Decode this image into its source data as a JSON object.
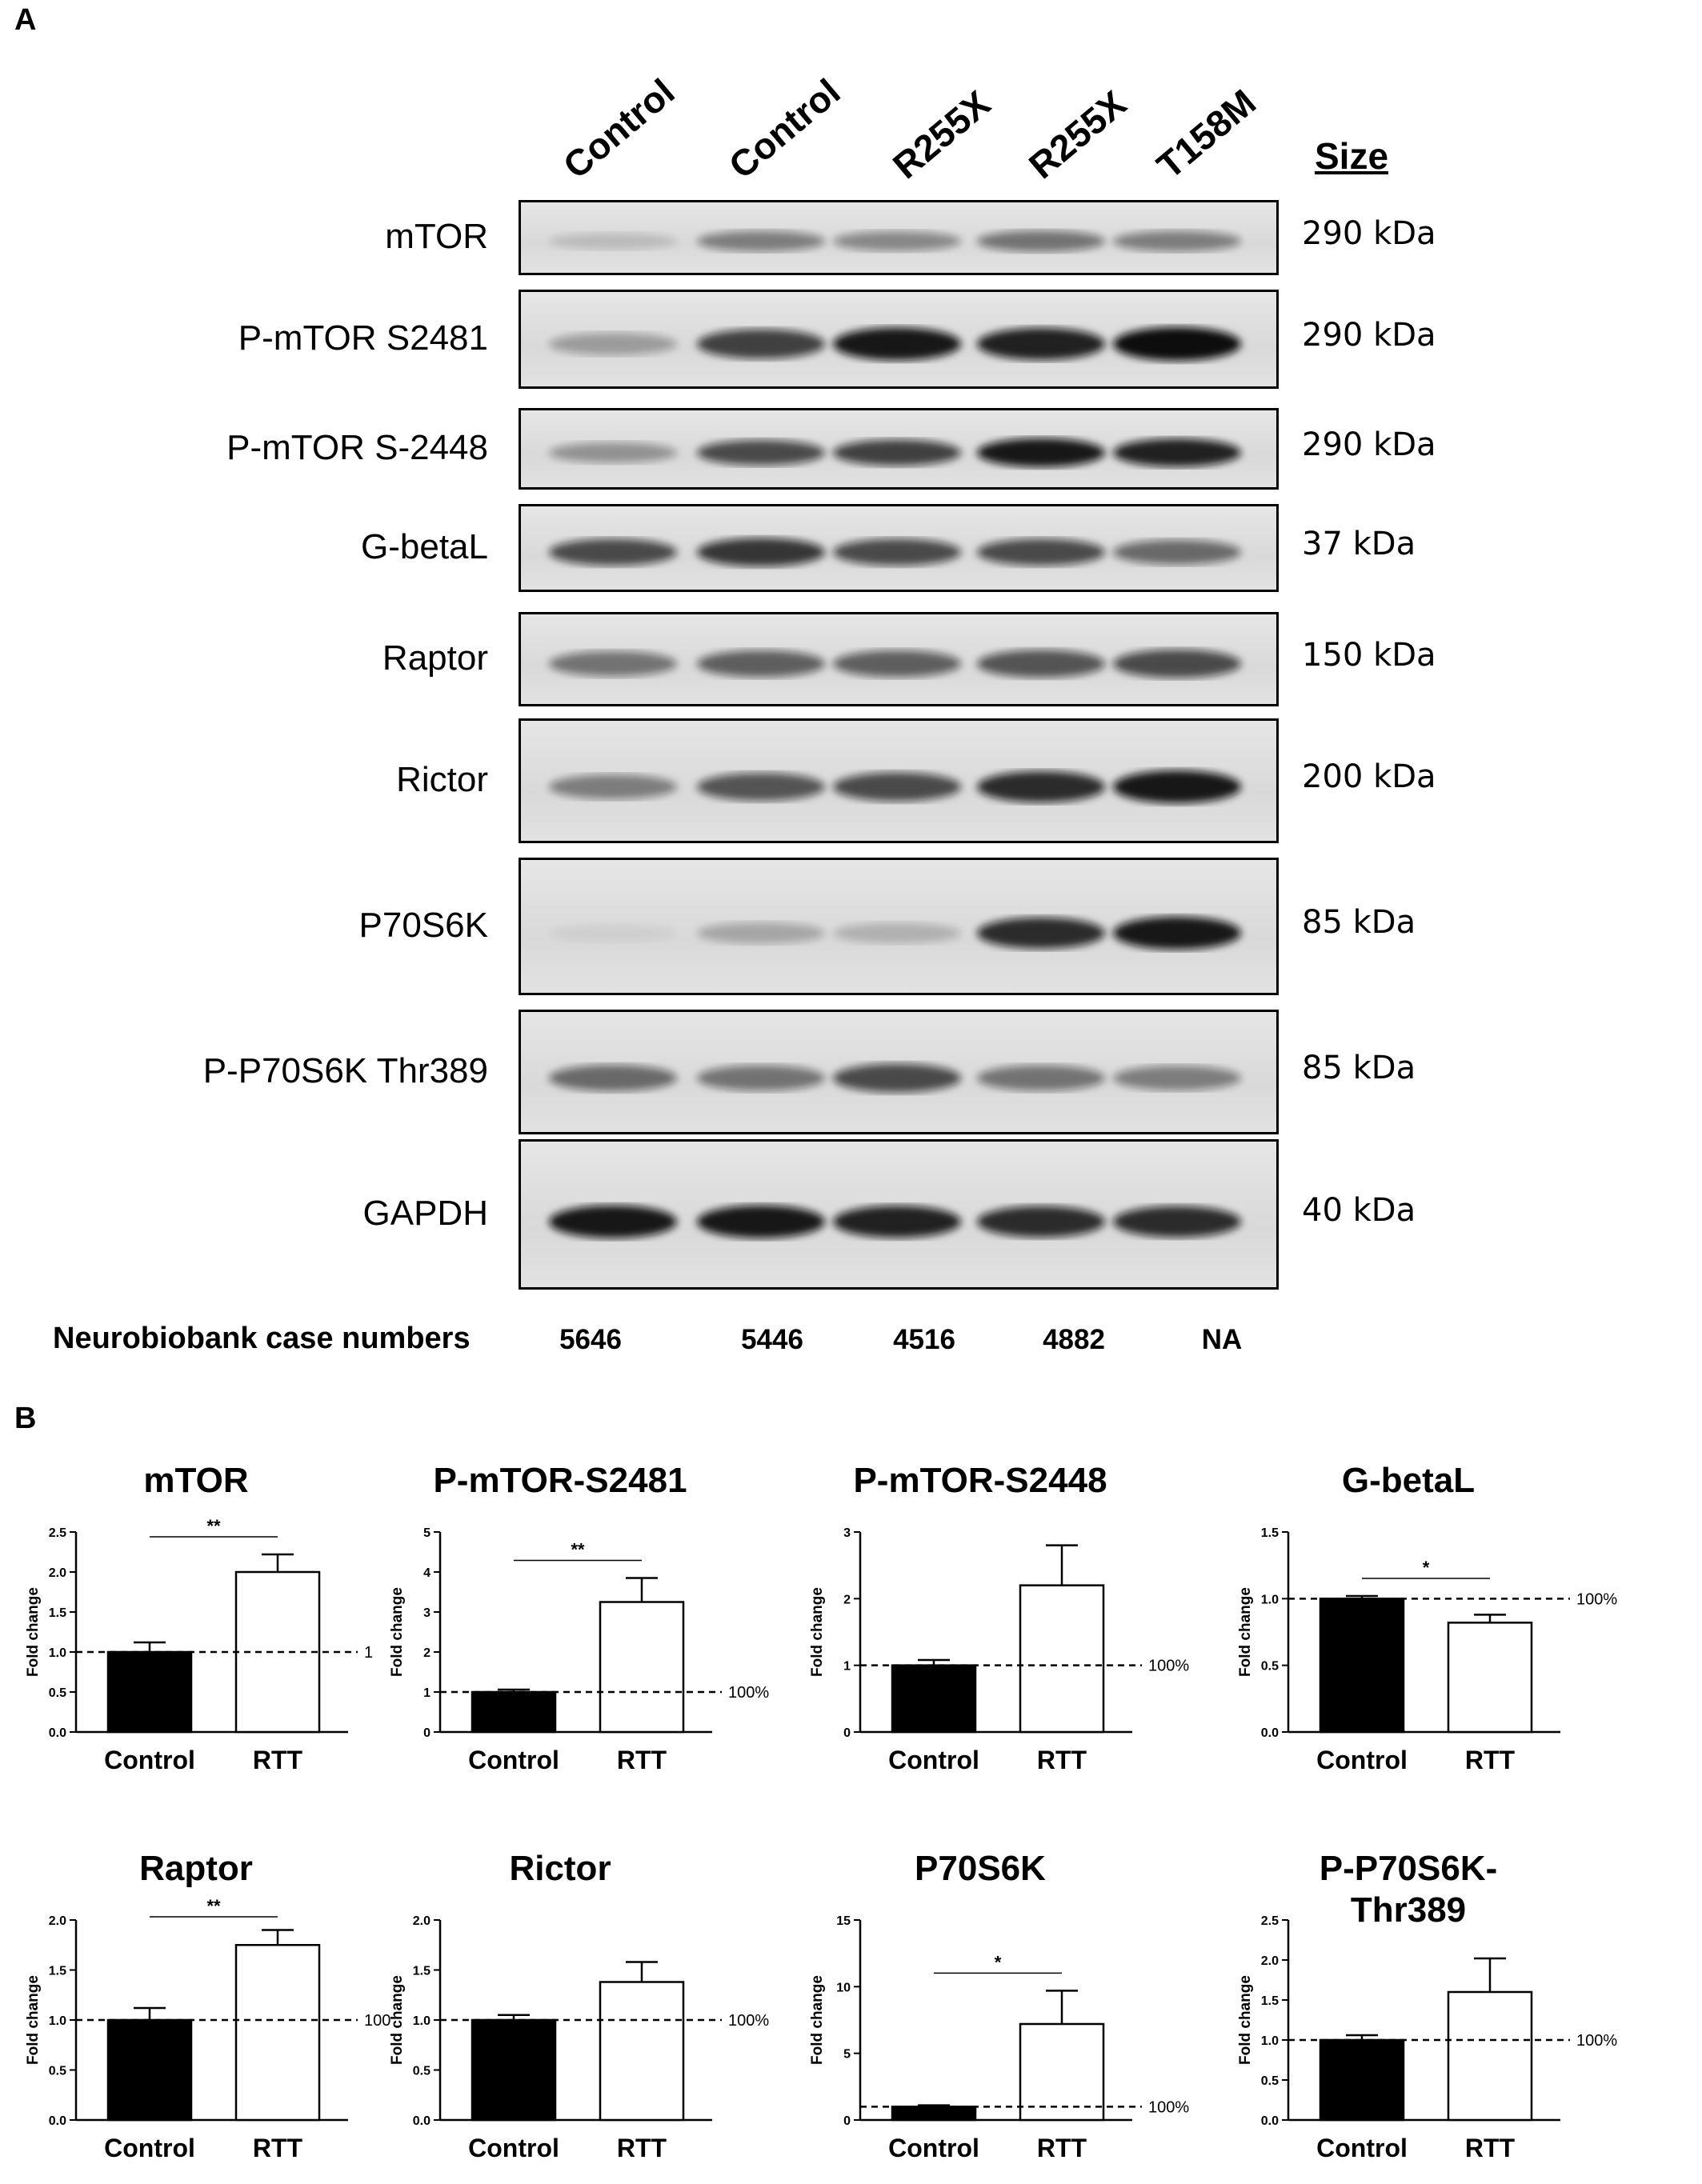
{
  "panel_a": {
    "letter": "A",
    "lanes": [
      "Control",
      "Control",
      "R255X",
      "R255X",
      "T158M"
    ],
    "size_header": "Size",
    "blots": [
      {
        "label": "mTOR",
        "size": "290 kDa",
        "intensity": [
          0.15,
          0.45,
          0.4,
          0.5,
          0.45
        ]
      },
      {
        "label": "P-mTOR S2481",
        "size": "290 kDa",
        "intensity": [
          0.3,
          0.75,
          0.95,
          0.9,
          1.0
        ]
      },
      {
        "label": "P-mTOR S-2448",
        "size": "290 kDa",
        "intensity": [
          0.35,
          0.7,
          0.75,
          0.95,
          0.9
        ]
      },
      {
        "label": "G-betaL",
        "size": "37 kDa",
        "intensity": [
          0.7,
          0.8,
          0.7,
          0.7,
          0.55
        ]
      },
      {
        "label": "Raptor",
        "size": "150 kDa",
        "intensity": [
          0.5,
          0.6,
          0.6,
          0.65,
          0.7
        ]
      },
      {
        "label": "Rictor",
        "size": "200 kDa",
        "intensity": [
          0.45,
          0.65,
          0.7,
          0.85,
          0.95
        ]
      },
      {
        "label": "P70S6K",
        "size": "85 kDa",
        "intensity": [
          0.05,
          0.25,
          0.2,
          0.85,
          0.95
        ]
      },
      {
        "label": "P-P70S6K Thr389",
        "size": "85 kDa",
        "intensity": [
          0.55,
          0.5,
          0.7,
          0.5,
          0.45
        ]
      },
      {
        "label": "GAPDH",
        "size": "40 kDa",
        "intensity": [
          0.95,
          0.95,
          0.9,
          0.85,
          0.85
        ]
      }
    ],
    "case_header": "Neurobiobank case numbers",
    "case_numbers": [
      "5646",
      "5446",
      "4516",
      "4882",
      "NA"
    ]
  },
  "panel_b": {
    "letter": "B",
    "colors": {
      "control": "#000000",
      "rtt": "#ffffff"
    }
  },
  "chart_data": [
    {
      "type": "bar",
      "title": "mTOR",
      "ylabel": "Fold change",
      "categories": [
        "Control",
        "RTT"
      ],
      "values": [
        1.0,
        2.0
      ],
      "errors": [
        0.12,
        0.22
      ],
      "ylim": [
        0,
        2.5
      ],
      "yticks": [
        "0.0",
        "0.5",
        "1.0",
        "1.5",
        "2.0",
        "2.5"
      ],
      "ytick_values": [
        0,
        0.5,
        1.0,
        1.5,
        2.0,
        2.5
      ],
      "reference": 1.0,
      "reference_label": "1",
      "significance": "**"
    },
    {
      "type": "bar",
      "title": "P-mTOR-S2481",
      "ylabel": "Fold change",
      "categories": [
        "Control",
        "RTT"
      ],
      "values": [
        1.0,
        3.25
      ],
      "errors": [
        0.06,
        0.6
      ],
      "ylim": [
        0,
        5
      ],
      "yticks": [
        "0",
        "1",
        "2",
        "3",
        "4",
        "5"
      ],
      "ytick_values": [
        0,
        1,
        2,
        3,
        4,
        5
      ],
      "reference": 1.0,
      "reference_label": "100%",
      "significance": "**"
    },
    {
      "type": "bar",
      "title": "P-mTOR-S2448",
      "ylabel": "Fold change",
      "categories": [
        "Control",
        "RTT"
      ],
      "values": [
        1.0,
        2.2
      ],
      "errors": [
        0.08,
        0.6
      ],
      "ylim": [
        0,
        3
      ],
      "yticks": [
        "0",
        "1",
        "2",
        "3"
      ],
      "ytick_values": [
        0,
        1,
        2,
        3
      ],
      "reference": 1.0,
      "reference_label": "100%",
      "significance": ""
    },
    {
      "type": "bar",
      "title": "G-betaL",
      "ylabel": "Fold change",
      "categories": [
        "Control",
        "RTT"
      ],
      "values": [
        1.0,
        0.82
      ],
      "errors": [
        0.02,
        0.06
      ],
      "ylim": [
        0,
        1.5
      ],
      "yticks": [
        "0.0",
        "0.5",
        "1.0",
        "1.5"
      ],
      "ytick_values": [
        0,
        0.5,
        1.0,
        1.5
      ],
      "reference": 1.0,
      "reference_label": "100%",
      "significance": "*"
    },
    {
      "type": "bar",
      "title": "Raptor",
      "ylabel": "Fold change",
      "categories": [
        "Control",
        "RTT"
      ],
      "values": [
        1.0,
        1.75
      ],
      "errors": [
        0.12,
        0.15
      ],
      "ylim": [
        0,
        2.0
      ],
      "yticks": [
        "0.0",
        "0.5",
        "1.0",
        "1.5",
        "2.0"
      ],
      "ytick_values": [
        0,
        0.5,
        1.0,
        1.5,
        2.0
      ],
      "reference": 1.0,
      "reference_label": "100",
      "significance": "**"
    },
    {
      "type": "bar",
      "title": "Rictor",
      "ylabel": "Fold change",
      "categories": [
        "Control",
        "RTT"
      ],
      "values": [
        1.0,
        1.38
      ],
      "errors": [
        0.05,
        0.2
      ],
      "ylim": [
        0,
        2.0
      ],
      "yticks": [
        "0.0",
        "0.5",
        "1.0",
        "1.5",
        "2.0"
      ],
      "ytick_values": [
        0,
        0.5,
        1.0,
        1.5,
        2.0
      ],
      "reference": 1.0,
      "reference_label": "100%",
      "significance": ""
    },
    {
      "type": "bar",
      "title": "P70S6K",
      "ylabel": "Fold change",
      "categories": [
        "Control",
        "RTT"
      ],
      "values": [
        1.0,
        7.2
      ],
      "errors": [
        0.1,
        2.5
      ],
      "ylim": [
        0,
        15
      ],
      "yticks": [
        "0",
        "5",
        "10",
        "15"
      ],
      "ytick_values": [
        0,
        5,
        10,
        15
      ],
      "reference": 1.0,
      "reference_label": "100%",
      "significance": "*"
    },
    {
      "type": "bar",
      "title": "P-P70S6K-Thr389",
      "title_lines": [
        "P-P70S6K-",
        "Thr389"
      ],
      "ylabel": "Fold change",
      "categories": [
        "Control",
        "RTT"
      ],
      "values": [
        1.0,
        1.6
      ],
      "errors": [
        0.06,
        0.42
      ],
      "ylim": [
        0,
        2.5
      ],
      "yticks": [
        "0.0",
        "0.5",
        "1.0",
        "1.5",
        "2.0",
        "2.5"
      ],
      "ytick_values": [
        0,
        0.5,
        1.0,
        1.5,
        2.0,
        2.5
      ],
      "reference": 1.0,
      "reference_label": "100%",
      "significance": ""
    }
  ]
}
